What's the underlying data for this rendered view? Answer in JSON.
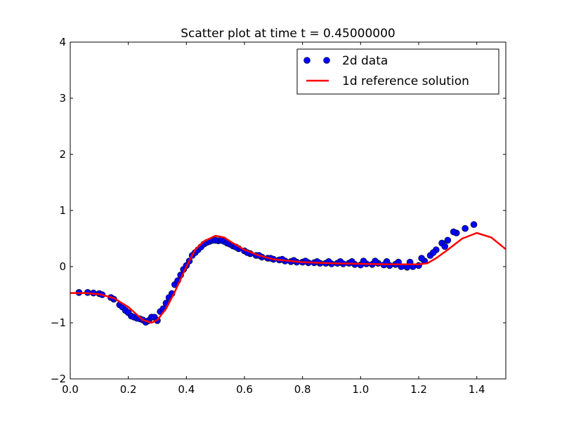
{
  "chart_data": {
    "type": "scatter",
    "title": "Scatter plot at time t =     0.45000000",
    "xlabel": "",
    "ylabel": "",
    "xlim": [
      0.0,
      1.5
    ],
    "ylim": [
      -2,
      4
    ],
    "grid": false,
    "x_ticks": [
      0.0,
      0.2,
      0.4,
      0.6,
      0.8,
      1.0,
      1.2,
      1.4
    ],
    "x_tick_labels": [
      "0.0",
      "0.2",
      "0.4",
      "0.6",
      "0.8",
      "1.0",
      "1.2",
      "1.4"
    ],
    "y_ticks": [
      -2,
      -1,
      0,
      1,
      2,
      3,
      4
    ],
    "y_tick_labels": [
      "−2",
      "−1",
      "0",
      "1",
      "2",
      "3",
      "4"
    ],
    "legend_position": "top-right",
    "series": [
      {
        "name": "2d data",
        "kind": "scatter",
        "color": "#0000ff",
        "x": [
          0.03,
          0.06,
          0.08,
          0.1,
          0.11,
          0.14,
          0.15,
          0.17,
          0.18,
          0.19,
          0.2,
          0.21,
          0.22,
          0.23,
          0.24,
          0.25,
          0.26,
          0.27,
          0.28,
          0.29,
          0.3,
          0.31,
          0.32,
          0.33,
          0.34,
          0.35,
          0.36,
          0.37,
          0.38,
          0.39,
          0.4,
          0.41,
          0.42,
          0.43,
          0.44,
          0.45,
          0.46,
          0.47,
          0.48,
          0.49,
          0.5,
          0.51,
          0.52,
          0.53,
          0.54,
          0.55,
          0.56,
          0.58,
          0.6,
          0.62,
          0.64,
          0.66,
          0.68,
          0.7,
          0.72,
          0.74,
          0.76,
          0.78,
          0.8,
          0.82,
          0.84,
          0.86,
          0.88,
          0.9,
          0.92,
          0.94,
          0.96,
          0.98,
          1.0,
          1.02,
          1.04,
          1.06,
          1.08,
          1.1,
          1.12,
          1.14,
          1.16,
          1.18,
          1.2,
          1.22,
          1.24,
          1.26,
          1.28,
          1.3,
          1.33,
          1.36,
          1.39,
          0.57,
          0.61,
          0.65,
          0.69,
          0.73,
          0.77,
          0.81,
          0.85,
          0.89,
          0.93,
          0.97,
          1.01,
          1.05,
          1.09,
          1.13,
          1.17,
          1.21,
          1.25,
          1.29,
          1.32
        ],
        "y": [
          -0.46,
          -0.46,
          -0.47,
          -0.48,
          -0.5,
          -0.55,
          -0.58,
          -0.68,
          -0.72,
          -0.78,
          -0.82,
          -0.88,
          -0.9,
          -0.92,
          -0.93,
          -0.95,
          -0.99,
          -0.96,
          -0.9,
          -0.9,
          -0.96,
          -0.8,
          -0.75,
          -0.65,
          -0.55,
          -0.48,
          -0.32,
          -0.25,
          -0.15,
          -0.05,
          0.02,
          0.1,
          0.2,
          0.25,
          0.3,
          0.35,
          0.4,
          0.43,
          0.45,
          0.47,
          0.47,
          0.46,
          0.47,
          0.45,
          0.42,
          0.4,
          0.37,
          0.32,
          0.28,
          0.23,
          0.2,
          0.17,
          0.15,
          0.13,
          0.12,
          0.1,
          0.09,
          0.08,
          0.08,
          0.07,
          0.07,
          0.06,
          0.06,
          0.05,
          0.06,
          0.05,
          0.06,
          0.04,
          0.03,
          0.05,
          0.04,
          0.06,
          0.03,
          0.02,
          0.04,
          0.0,
          -0.01,
          0.0,
          0.02,
          0.1,
          0.2,
          0.3,
          0.42,
          0.47,
          0.6,
          0.68,
          0.75,
          0.35,
          0.25,
          0.2,
          0.15,
          0.13,
          0.11,
          0.1,
          0.09,
          0.09,
          0.09,
          0.09,
          0.1,
          0.1,
          0.09,
          0.08,
          0.08,
          0.15,
          0.25,
          0.36,
          0.62
        ]
      },
      {
        "name": "1d reference solution",
        "kind": "line",
        "color": "#ff0000",
        "x": [
          0,
          0.05,
          0.1,
          0.15,
          0.2,
          0.25,
          0.28,
          0.3,
          0.33,
          0.36,
          0.4,
          0.43,
          0.46,
          0.5,
          0.53,
          0.56,
          0.6,
          0.65,
          0.7,
          0.8,
          0.9,
          1.0,
          1.1,
          1.2,
          1.23,
          1.26,
          1.3,
          1.35,
          1.4,
          1.45,
          1.5
        ],
        "y": [
          -0.47,
          -0.47,
          -0.49,
          -0.56,
          -0.72,
          -0.95,
          -1.0,
          -0.95,
          -0.75,
          -0.45,
          0.0,
          0.3,
          0.45,
          0.55,
          0.52,
          0.42,
          0.3,
          0.2,
          0.13,
          0.08,
          0.06,
          0.05,
          0.04,
          0.04,
          0.06,
          0.15,
          0.3,
          0.5,
          0.6,
          0.52,
          0.31
        ]
      }
    ]
  }
}
